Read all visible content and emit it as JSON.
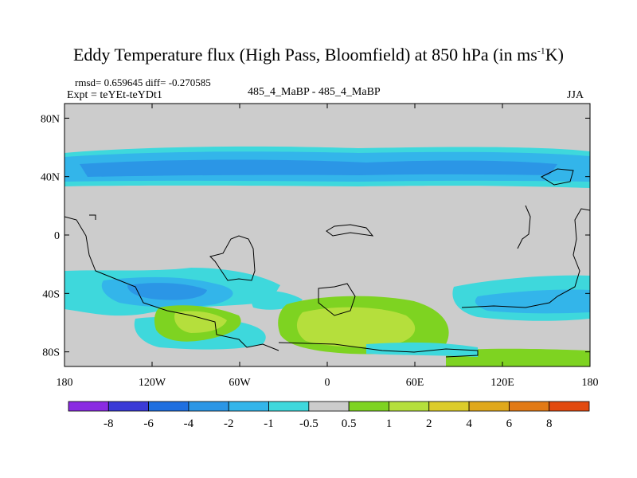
{
  "title_main": "Eddy Temperature flux (High Pass, Bloomfield) at 850 hPa (in ms",
  "title_sup": "-1",
  "title_tail": "K)",
  "rmsd_line": "rmsd= 0.659645 diff= -0.270585",
  "expt_line": "Expt = teYEt-teYDt1",
  "center_label": "485_4_MaBP - 485_4_MaBP",
  "season": "JJA",
  "chart_data": {
    "type": "heatmap",
    "x_ticks": [
      "180",
      "120W",
      "60W",
      "0",
      "60E",
      "120E",
      "180"
    ],
    "y_ticks": [
      "80N",
      "40N",
      "0",
      "40S",
      "80S"
    ],
    "xlim": [
      -180,
      180
    ],
    "ylim": [
      -90,
      90
    ],
    "colorbar": {
      "labels": [
        "-8",
        "-6",
        "-4",
        "-2",
        "-1",
        "-0.5",
        "0.5",
        "1",
        "2",
        "4",
        "6",
        "8"
      ],
      "colors": [
        "#8a2be2",
        "#3a3ad6",
        "#1f6fe0",
        "#2b96e6",
        "#33b5ea",
        "#3ed8dc",
        "#cccccc",
        "#7ed321",
        "#b5df3c",
        "#dccc2a",
        "#e0a81c",
        "#e27a16",
        "#e24a10"
      ]
    },
    "regions": [
      {
        "level": "-2",
        "description": "NH midlatitude band",
        "lon": [
          -180,
          180
        ],
        "lat": [
          28,
          60
        ]
      },
      {
        "level": "-4",
        "description": "NH storm track core",
        "lon": [
          -170,
          150
        ],
        "lat": [
          36,
          50
        ]
      },
      {
        "level": "-2",
        "description": "SH band west",
        "lon": [
          -180,
          -60
        ],
        "lat": [
          -55,
          -25
        ]
      },
      {
        "level": "-4",
        "description": "SH Pacific core",
        "lon": [
          -130,
          -70
        ],
        "lat": [
          -48,
          -33
        ]
      },
      {
        "level": "2",
        "description": "SH Atlantic/Indian positive",
        "lon": [
          -15,
          100
        ],
        "lat": [
          -80,
          -40
        ]
      },
      {
        "level": "1",
        "description": "SH south of Pacific",
        "lon": [
          -110,
          -60
        ],
        "lat": [
          -75,
          -50
        ]
      },
      {
        "level": "-2",
        "description": "SH Pacific east band",
        "lon": [
          100,
          180
        ],
        "lat": [
          -55,
          -25
        ]
      }
    ]
  }
}
